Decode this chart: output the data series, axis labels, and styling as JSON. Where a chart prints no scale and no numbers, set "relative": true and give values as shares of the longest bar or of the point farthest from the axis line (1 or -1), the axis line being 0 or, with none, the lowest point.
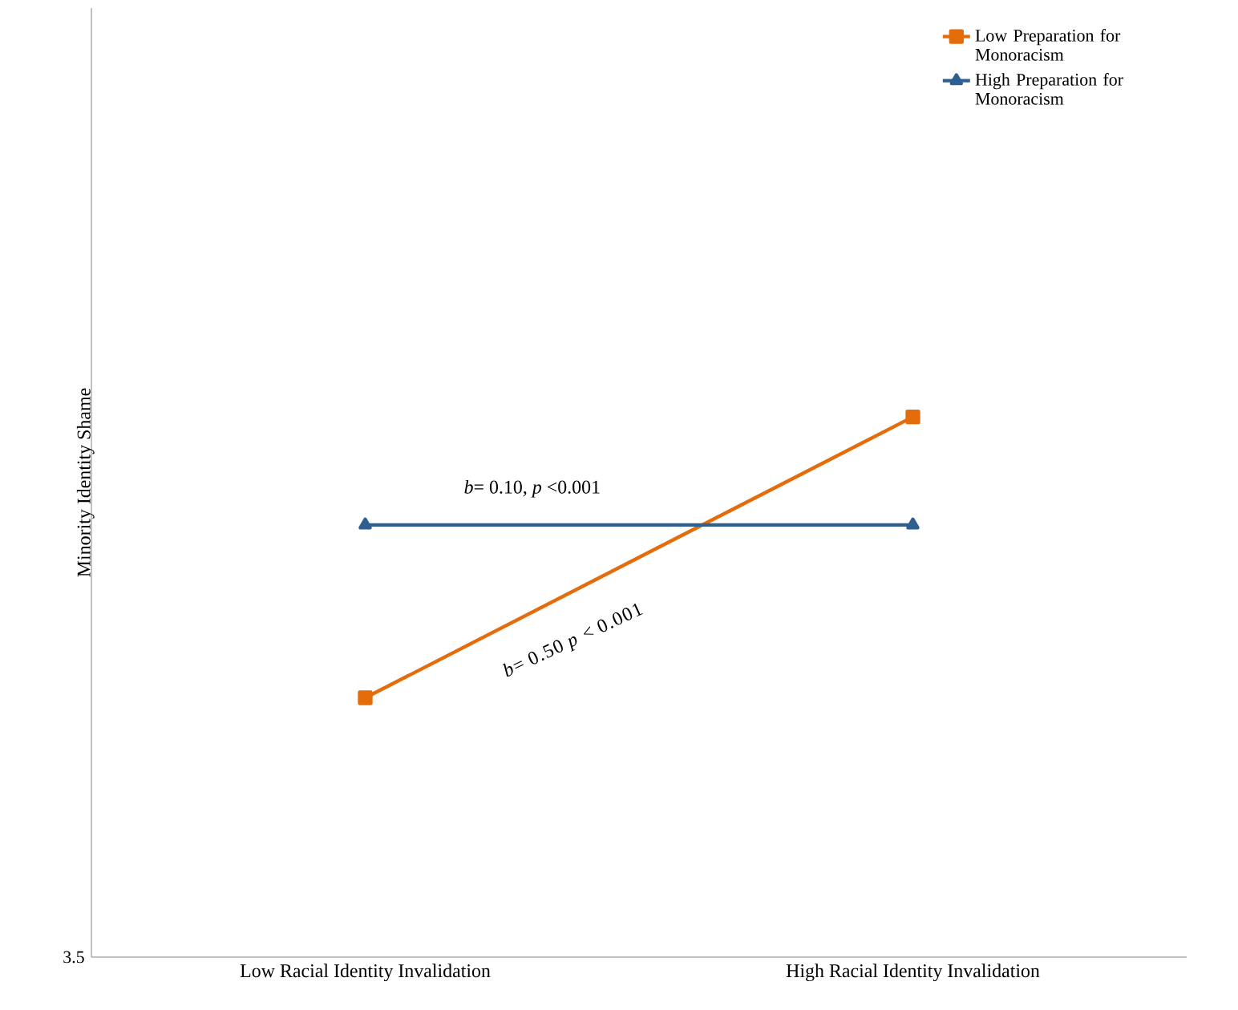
{
  "chart_data": {
    "type": "line",
    "relative": true,
    "ylabel": "Minority Identity Shame",
    "categories": [
      "Low Racial Identity Invalidation",
      "High Racial Identity Invalidation"
    ],
    "series": [
      {
        "name": "Low Preparation for Monoracism",
        "color": "#e46c0a",
        "marker": "square",
        "values": [
          0.48,
          1
        ]
      },
      {
        "name": "High Preparation for Monoracism",
        "color": "#2e5f91",
        "marker": "triangle",
        "values": [
          0.8,
          0.8
        ]
      }
    ],
    "legend": "top right",
    "annotations": [
      "*b*= 0.10, *p* <0.001",
      "*b*= 0.50 *p* < 0.001",
      "3.5"
    ]
  }
}
